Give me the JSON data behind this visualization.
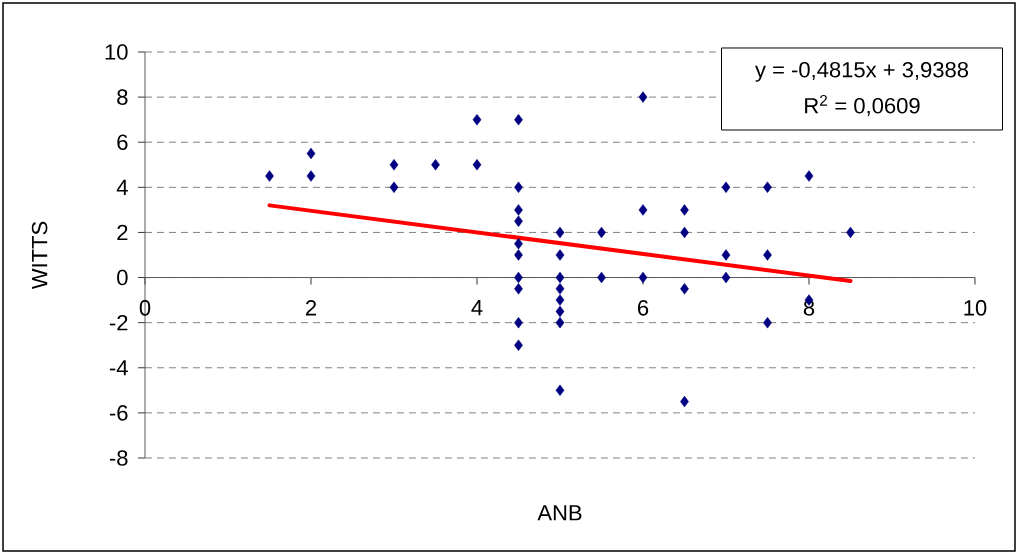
{
  "chart_data": {
    "type": "scatter",
    "xlabel": "ANB",
    "ylabel": "WITTS",
    "xlim": [
      0,
      10
    ],
    "ylim": [
      -8,
      10
    ],
    "xticks": [
      0,
      2,
      4,
      6,
      8,
      10
    ],
    "yticks": [
      -8,
      -6,
      -4,
      -2,
      0,
      2,
      4,
      6,
      8,
      10
    ],
    "grid": "y",
    "annotations": [
      "y = -0,4815x + 3,9388",
      "R$^{2}$ = 0,0609"
    ],
    "series": [
      {
        "color": "#000080",
        "marker": "diamond",
        "x": [
          1.5,
          2,
          2,
          3,
          3,
          3.5,
          4,
          4,
          4.5,
          4.5,
          4.5,
          4.5,
          4.5,
          4.5,
          4.5,
          4.5,
          4.5,
          4.5,
          5,
          5,
          5,
          5,
          5,
          5,
          5,
          5,
          5.5,
          5.5,
          6,
          6,
          6,
          6.5,
          6.5,
          6.5,
          6.5,
          7,
          7,
          7,
          7.5,
          7.5,
          7.5,
          8,
          8,
          8.5
        ],
        "values": [
          4.5,
          5.5,
          4.5,
          5,
          4,
          5,
          7,
          5,
          7,
          4,
          3,
          2.5,
          1.5,
          1,
          0,
          -0.5,
          -2,
          -3,
          2,
          1,
          0,
          -0.5,
          -1,
          -1.5,
          -2,
          -5,
          2,
          0,
          8,
          3,
          0,
          3,
          2,
          -0.5,
          -5.5,
          4,
          1,
          0,
          4,
          1,
          -2,
          4.5,
          -1,
          2
        ]
      },
      {
        "type": "line",
        "color": "#ff0000",
        "marker": "none",
        "x": [
          1.5,
          8.5
        ],
        "values": [
          3.2,
          -0.15
        ]
      }
    ]
  }
}
